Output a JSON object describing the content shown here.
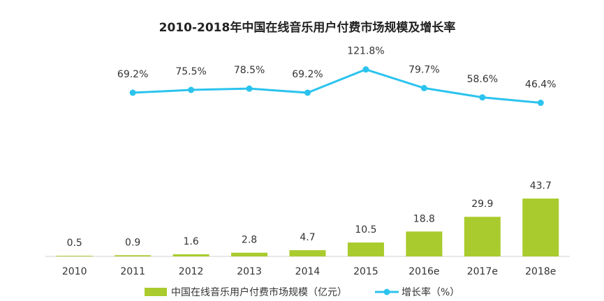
{
  "chart_data": {
    "type": "bar-line",
    "title": "2010-2018年中国在线音乐用户付费市场规模及增长率",
    "categories": [
      "2010",
      "2011",
      "2012",
      "2013",
      "2014",
      "2015",
      "2016e",
      "2017e",
      "2018e"
    ],
    "series": [
      {
        "name": "中国在线音乐用户付费市场规模（亿元）",
        "type": "bar",
        "color": "#a9cb2d",
        "values": [
          0.5,
          0.9,
          1.6,
          2.8,
          4.7,
          10.5,
          18.8,
          29.9,
          43.7
        ]
      },
      {
        "name": "增长率（%）",
        "type": "line",
        "axis": "y2",
        "color": "#2bc3ee",
        "values": [
          null,
          69.2,
          75.5,
          78.5,
          69.2,
          121.8,
          79.7,
          58.6,
          46.4
        ],
        "value_labels": [
          null,
          "69.2%",
          "75.5%",
          "78.5%",
          "69.2%",
          "121.8%",
          "79.7%",
          "58.6%",
          "46.4%"
        ]
      }
    ],
    "ylim": [
      0,
      100
    ],
    "y2lim": [
      0,
      200
    ],
    "grid": false
  }
}
